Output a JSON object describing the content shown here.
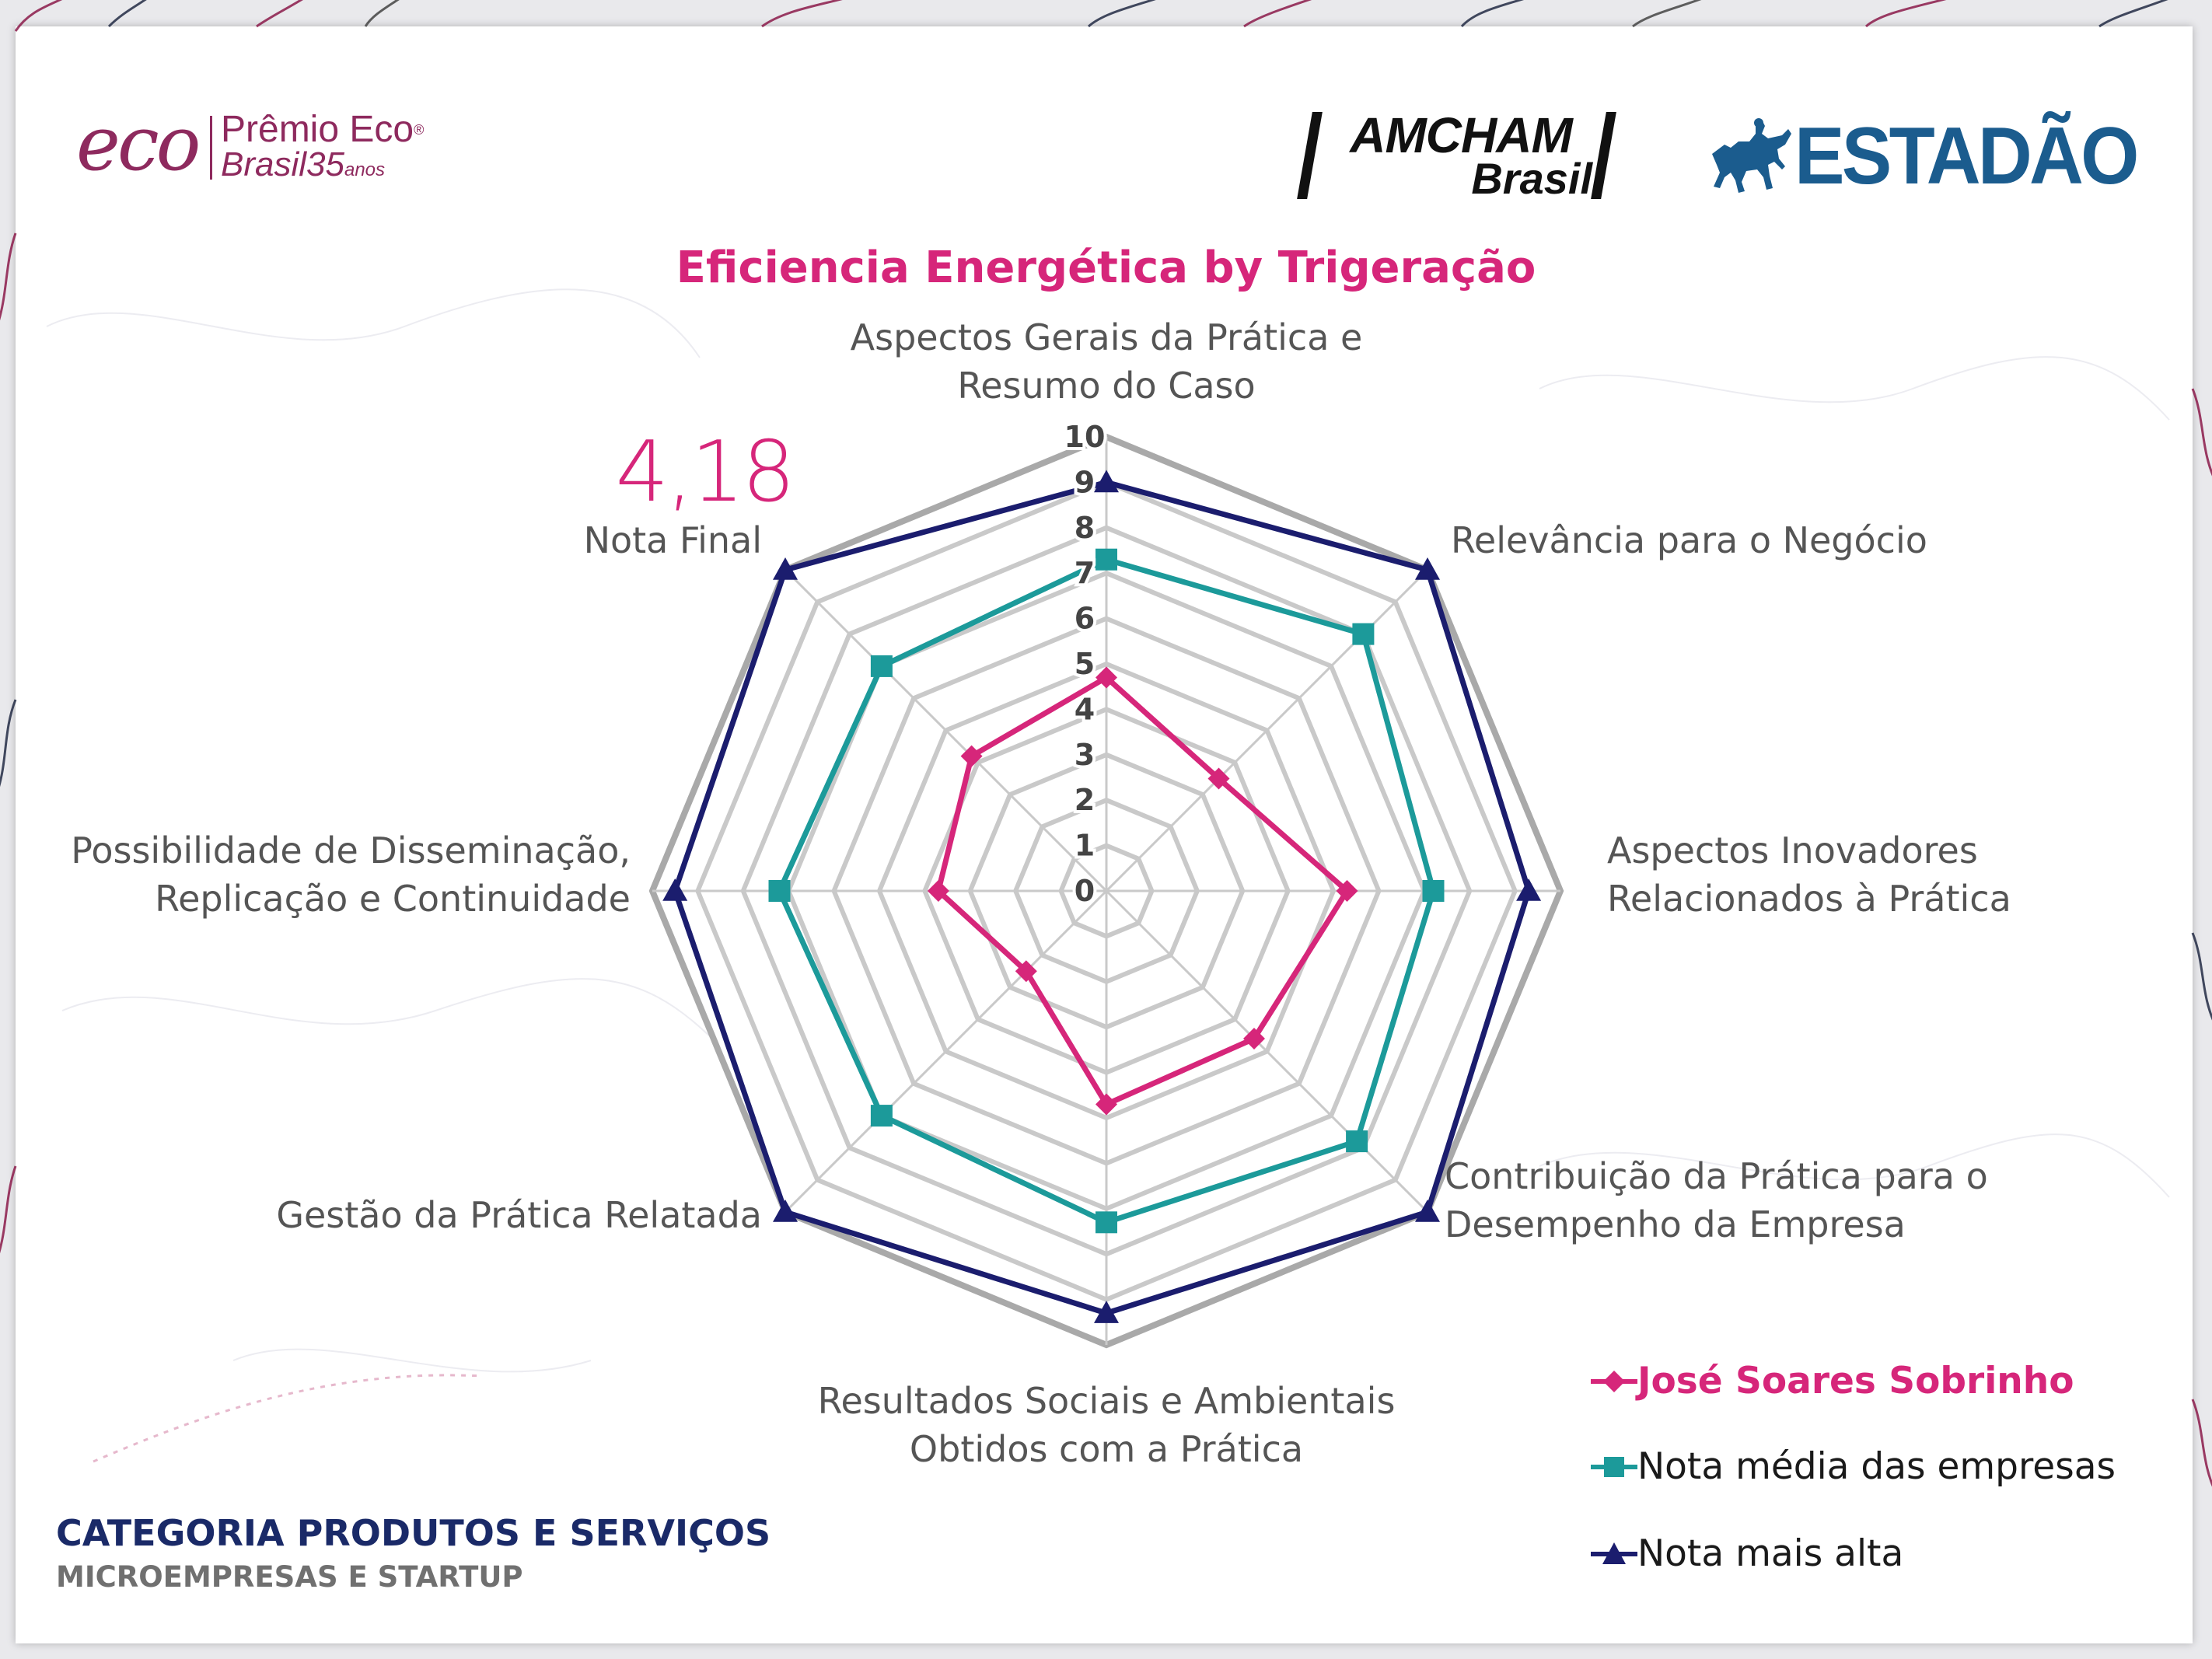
{
  "logos": {
    "eco": {
      "word": "eco",
      "line1": "Prêmio Eco",
      "registered": "®",
      "line2": "Brasil",
      "years": "35",
      "years_suffix": "anos"
    },
    "amcham": {
      "line1": "AMCHAM",
      "line2": "Brasil"
    },
    "estadao": {
      "word": "ESTADÃO"
    }
  },
  "final_score": "4,18",
  "category": "CATEGORIA PRODUTOS E SERVIÇOS",
  "subcategory": "MICROEMPRESAS E STARTUP",
  "chart_data": {
    "type": "radar",
    "title": "Eficiencia Energética by Trigeração",
    "axes": [
      "Aspectos Gerais da Prática e\nResumo do Caso",
      "Relevância para o Negócio",
      "Aspectos Inovadores\nRelacionados à Prática",
      "Contribuição da Prática para o\nDesempenho da Empresa",
      "Resultados Sociais e Ambientais\nObtidos com a Prática",
      "Gestão da Prática Relatada",
      "Possibilidade de Disseminação,\nReplicação e Continuidade",
      "Nota Final"
    ],
    "rlim": [
      0,
      10
    ],
    "ticks": [
      "0",
      "1",
      "2",
      "3",
      "4",
      "5",
      "6",
      "7",
      "8",
      "9",
      "10"
    ],
    "grid": true,
    "legend_position": "bottom-right",
    "series": [
      {
        "name": "José Soares Sobrinho",
        "color": "#d6267a",
        "marker": "diamond",
        "values": [
          4.7,
          3.5,
          5.3,
          4.6,
          4.7,
          2.5,
          3.7,
          4.2
        ]
      },
      {
        "name": "Nota média das empresas",
        "color": "#1c9a9a",
        "marker": "square",
        "values": [
          7.3,
          8.0,
          7.2,
          7.8,
          7.3,
          7.0,
          7.2,
          7.0
        ]
      },
      {
        "name": "Nota mais alta",
        "color": "#1b1d6e",
        "marker": "triangle",
        "values": [
          9.0,
          10.0,
          9.3,
          10.0,
          9.3,
          10.0,
          9.5,
          10.0
        ]
      }
    ]
  },
  "colors": {
    "title": "#d6267a",
    "grid_outer": "#a9a9a9",
    "grid_inner": "#c9c9c9",
    "axis_label": "#555555",
    "tick_label": "#444444",
    "category_text": "#1a2a68",
    "subcategory_text": "#707070"
  }
}
